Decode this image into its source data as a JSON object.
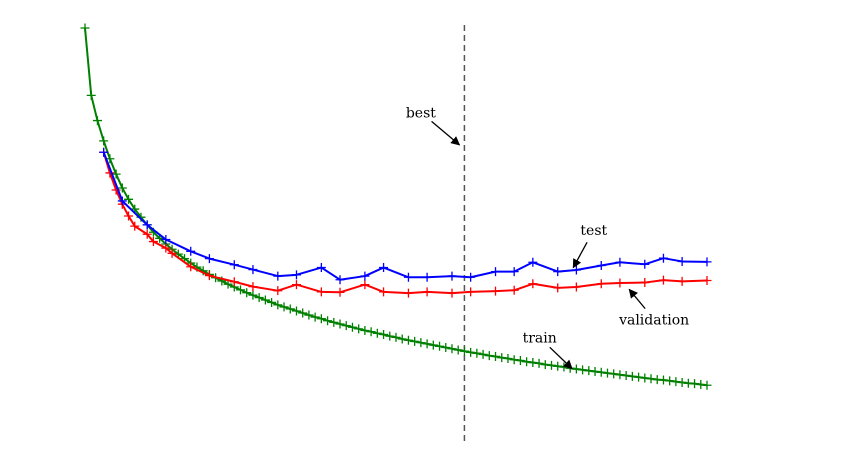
{
  "chart_data": {
    "type": "line",
    "title": "",
    "xlabel": "",
    "ylabel": "",
    "grid": false,
    "axes_visible": false,
    "xlim": [
      0,
      100
    ],
    "ylim": [
      0,
      1
    ],
    "series": [
      {
        "name": "train",
        "color": "#008000",
        "marker": "+",
        "x": [
          0,
          1,
          2,
          3,
          4,
          5,
          6,
          7,
          8,
          9,
          10,
          11,
          12,
          13,
          14,
          15,
          16,
          17,
          18,
          19,
          20,
          21,
          22,
          23,
          24,
          25,
          26,
          27,
          28,
          29,
          30,
          31,
          32,
          33,
          34,
          35,
          36,
          37,
          38,
          39,
          40,
          41,
          42,
          43,
          44,
          45,
          46,
          47,
          48,
          49,
          50,
          51,
          52,
          53,
          54,
          55,
          56,
          57,
          58,
          59,
          60,
          61,
          62,
          63,
          64,
          65,
          66,
          67,
          68,
          69,
          70,
          71,
          72,
          73,
          74,
          75,
          76,
          77,
          78,
          79,
          80,
          81,
          82,
          83,
          84,
          85,
          86,
          87,
          88,
          89,
          90,
          91,
          92,
          93,
          94,
          95,
          96,
          97,
          98,
          99,
          100
        ],
        "y": [
          1.0,
          0.834,
          0.772,
          0.722,
          0.678,
          0.64,
          0.606,
          0.578,
          0.554,
          0.534,
          0.515,
          0.497,
          0.482,
          0.468,
          0.455,
          0.443,
          0.432,
          0.421,
          0.411,
          0.402,
          0.393,
          0.385,
          0.377,
          0.369,
          0.362,
          0.355,
          0.348,
          0.342,
          0.336,
          0.33,
          0.324,
          0.318,
          0.313,
          0.308,
          0.303,
          0.298,
          0.293,
          0.288,
          0.284,
          0.279,
          0.275,
          0.271,
          0.267,
          0.263,
          0.259,
          0.255,
          0.252,
          0.248,
          0.245,
          0.241,
          0.238,
          0.234,
          0.231,
          0.228,
          0.225,
          0.222,
          0.219,
          0.216,
          0.213,
          0.21,
          0.207,
          0.204,
          0.201,
          0.199,
          0.196,
          0.193,
          0.191,
          0.188,
          0.186,
          0.183,
          0.181,
          0.178,
          0.176,
          0.174,
          0.171,
          0.169,
          0.167,
          0.165,
          0.162,
          0.16,
          0.158,
          0.156,
          0.154,
          0.152,
          0.15,
          0.148,
          0.146,
          0.144,
          0.142,
          0.14,
          0.138,
          0.136,
          0.134,
          0.133,
          0.131,
          0.129,
          0.127,
          0.125,
          0.124,
          0.122,
          0.12
        ]
      },
      {
        "name": "validation",
        "color": "#ff0000",
        "marker": "+",
        "x": [
          3,
          4,
          5,
          6,
          7,
          8,
          10,
          11,
          13,
          14,
          17,
          20,
          24,
          27,
          31,
          34,
          38,
          41,
          45,
          48,
          52,
          55,
          59,
          62,
          66,
          69,
          72,
          76,
          79,
          83,
          86,
          90,
          93,
          96,
          100
        ],
        "y": [
          0.694,
          0.643,
          0.601,
          0.566,
          0.537,
          0.512,
          0.492,
          0.474,
          0.458,
          0.445,
          0.412,
          0.39,
          0.375,
          0.363,
          0.353,
          0.368,
          0.35,
          0.349,
          0.368,
          0.35,
          0.347,
          0.35,
          0.347,
          0.35,
          0.352,
          0.354,
          0.37,
          0.36,
          0.362,
          0.37,
          0.372,
          0.373,
          0.379,
          0.376,
          0.378
        ]
      },
      {
        "name": "test",
        "color": "#0000ff",
        "marker": "+",
        "x": [
          3,
          6,
          10,
          13,
          17,
          20,
          24,
          27,
          31,
          34,
          38,
          41,
          45,
          48,
          52,
          55,
          59,
          62,
          66,
          69,
          72,
          76,
          79,
          83,
          86,
          90,
          93,
          96,
          100
        ],
        "y": [
          0.694,
          0.574,
          0.515,
          0.479,
          0.45,
          0.432,
          0.417,
          0.405,
          0.389,
          0.392,
          0.41,
          0.38,
          0.389,
          0.41,
          0.386,
          0.386,
          0.389,
          0.386,
          0.4,
          0.4,
          0.423,
          0.4,
          0.404,
          0.415,
          0.423,
          0.418,
          0.433,
          0.425,
          0.424
        ]
      }
    ],
    "vlines": [
      {
        "x": 61,
        "style": "dashed",
        "color": "#555555"
      }
    ],
    "annotations": [
      {
        "text": "best",
        "target": {
          "x": 60.2,
          "y": 0.712
        },
        "text_pos": {
          "x": 54,
          "y": 0.78
        }
      },
      {
        "text": "test",
        "target": {
          "x": 78.5,
          "y": 0.41
        },
        "text_pos": {
          "x": 81.8,
          "y": 0.49
        }
      },
      {
        "text": "validation",
        "target": {
          "x": 87.5,
          "y": 0.356
        },
        "text_pos": {
          "x": 91.5,
          "y": 0.27
        }
      },
      {
        "text": "train",
        "target": {
          "x": 78.3,
          "y": 0.161
        },
        "text_pos": {
          "x": 73.1,
          "y": 0.225
        }
      }
    ]
  }
}
